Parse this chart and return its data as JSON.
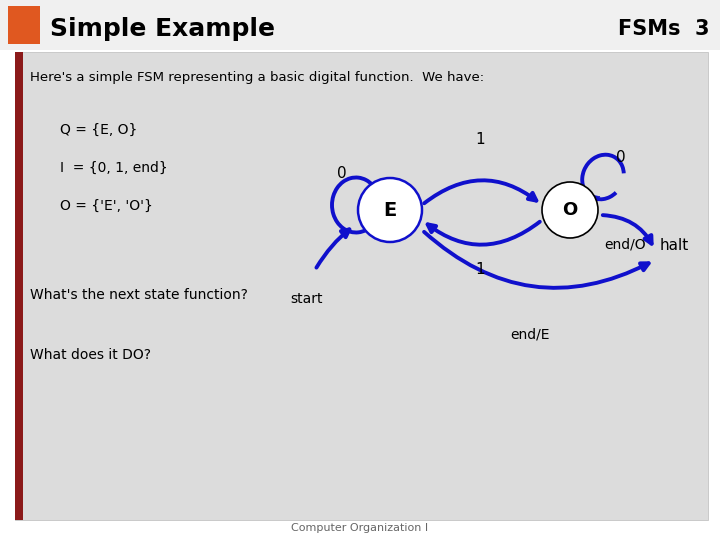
{
  "title": "Simple Example",
  "title_color": "#000000",
  "slide_number": "FSMs  3",
  "header_bar_color": "#8B1A1A",
  "orange_square_color": "#E05820",
  "background_color": "#FFFFFF",
  "content_bg_color": "#E0E0E0",
  "subtitle": "Here's a simple FSM representing a basic digital function.  We have:",
  "state_color": "#FFFFFF",
  "arrow_color": "#1010CC",
  "text_color": "#000000",
  "text_left": [
    "Q = {E, O}",
    "I  = {0, 1, end}",
    "O = {'E', 'O'}"
  ],
  "question1": "What's the next state function?",
  "question2": "What does it DO?",
  "footer": "Computer Organization I"
}
